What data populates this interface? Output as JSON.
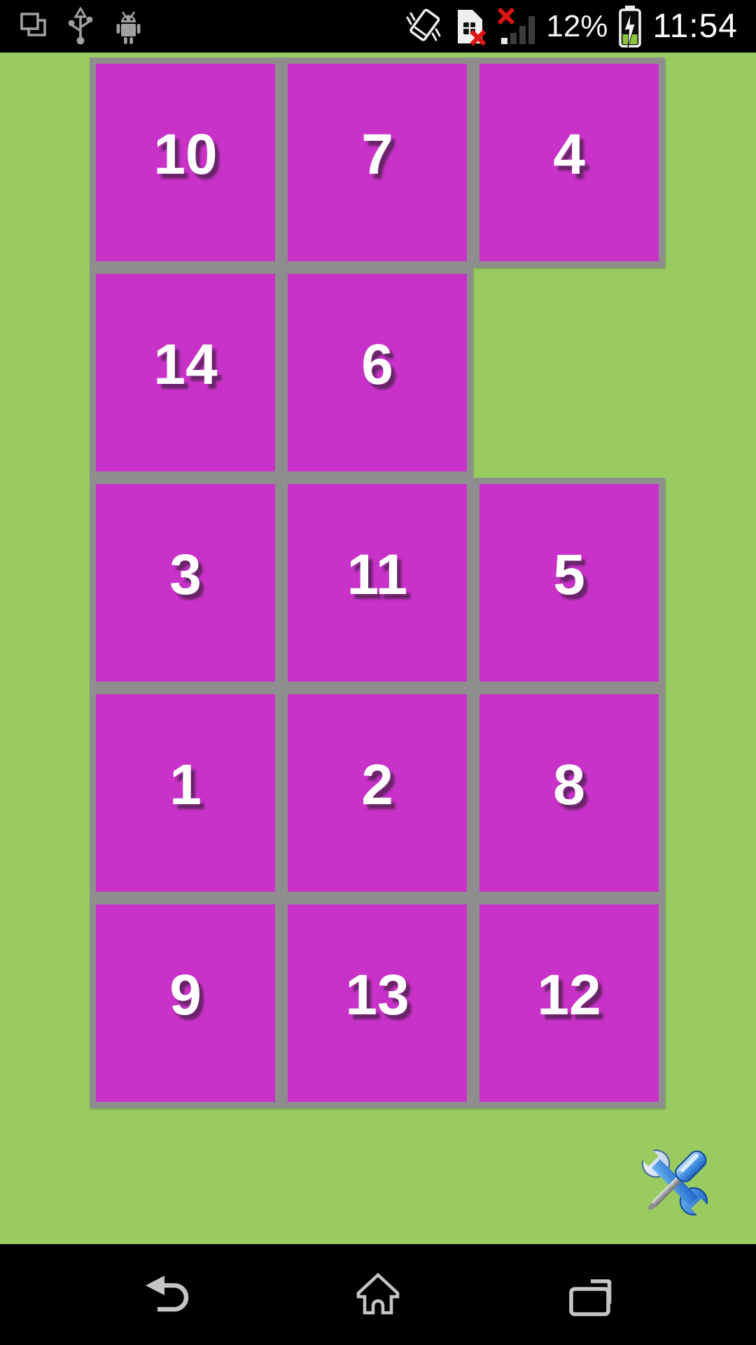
{
  "status_bar": {
    "time": "11:54",
    "battery_percent": "12%",
    "left_icons": [
      "screenshots-icon",
      "usb-icon",
      "android-icon"
    ],
    "right_icons": [
      "vibrate-icon",
      "sim-missing-icon",
      "no-signal-icon",
      "battery-charging-icon"
    ]
  },
  "puzzle": {
    "rows": 5,
    "cols": 3,
    "tiles": [
      {
        "label": "10",
        "row": 0,
        "col": 0
      },
      {
        "label": "7",
        "row": 0,
        "col": 1
      },
      {
        "label": "4",
        "row": 0,
        "col": 2
      },
      {
        "label": "14",
        "row": 1,
        "col": 0
      },
      {
        "label": "6",
        "row": 1,
        "col": 1
      },
      {
        "label": "3",
        "row": 2,
        "col": 0
      },
      {
        "label": "11",
        "row": 2,
        "col": 1
      },
      {
        "label": "5",
        "row": 2,
        "col": 2
      },
      {
        "label": "1",
        "row": 3,
        "col": 0
      },
      {
        "label": "2",
        "row": 3,
        "col": 1
      },
      {
        "label": "8",
        "row": 3,
        "col": 2
      },
      {
        "label": "9",
        "row": 4,
        "col": 0
      },
      {
        "label": "13",
        "row": 4,
        "col": 1
      },
      {
        "label": "12",
        "row": 4,
        "col": 2
      }
    ],
    "empty_cell": {
      "row": 1,
      "col": 2
    }
  },
  "settings_button": {
    "icon": "wrench-screwdriver-icon"
  },
  "nav_bar": {
    "buttons": [
      "back",
      "home",
      "recents"
    ]
  },
  "colors": {
    "background": "#9ACB61",
    "tile": "#C832C8",
    "tile_border": "#8E8E8E",
    "tile_text": "#FFFFFF",
    "bar_background": "#000000",
    "nav_icon": "#C4C4C4",
    "status_icon_gray": "#A0A0A0",
    "status_icon_white": "#EFEFEF",
    "error_red": "#DE1414",
    "battery_green": "#8CC63F",
    "signal_bar_dark": "#3C3C3C"
  }
}
